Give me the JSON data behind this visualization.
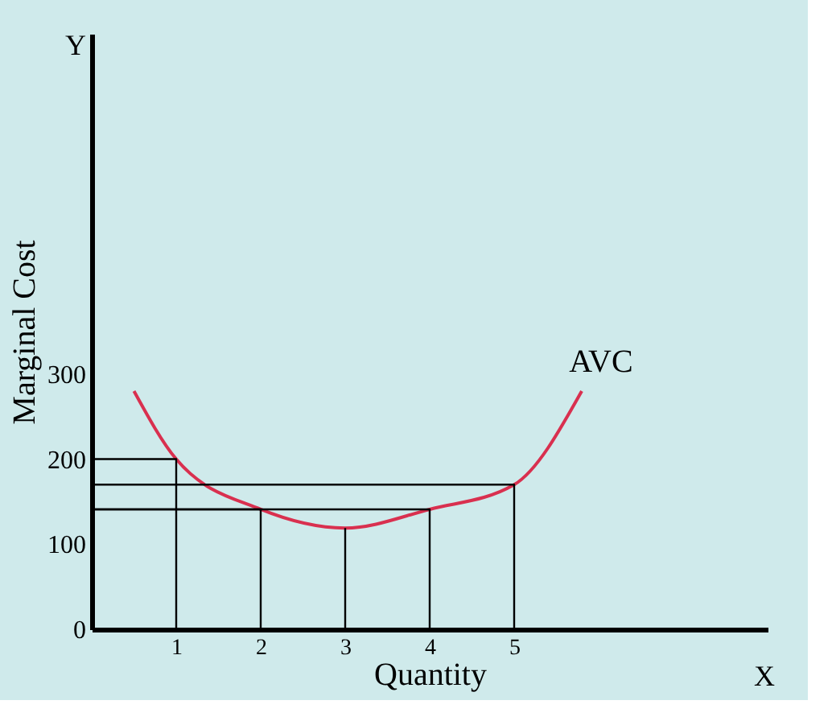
{
  "chart_data": {
    "type": "line",
    "xlabel": "Quantity",
    "ylabel": "Marginal Cost",
    "xlim": [
      0,
      8
    ],
    "ylim": [
      0,
      700
    ],
    "xticks": [
      1,
      2,
      3,
      4,
      5
    ],
    "yticks": [
      0,
      100,
      200,
      300
    ],
    "grid": false,
    "marker": "none",
    "line_style": "solid",
    "series": [
      {
        "color": "#d9304f",
        "x": [
          0.5,
          1,
          2,
          3,
          4,
          5,
          5.8
        ],
        "values": [
          280,
          200,
          141,
          119,
          141,
          170,
          280
        ]
      },
      {
        "color": "#000000",
        "x": [
          0,
          1,
          1
        ],
        "values": [
          200,
          200,
          0
        ]
      },
      {
        "color": "#000000",
        "x": [
          0,
          2,
          2
        ],
        "values": [
          141,
          141,
          0
        ]
      },
      {
        "color": "#000000",
        "x": [
          3,
          3
        ],
        "values": [
          119,
          0
        ]
      },
      {
        "color": "#000000",
        "x": [
          0,
          4,
          4
        ],
        "values": [
          141,
          141,
          0
        ]
      },
      {
        "color": "#000000",
        "x": [
          0,
          5,
          5
        ],
        "values": [
          170,
          170,
          0
        ]
      }
    ],
    "annotations": [
      {
        "text": "AVC",
        "x": 5.8,
        "y": 280
      },
      "Y",
      "X"
    ]
  }
}
